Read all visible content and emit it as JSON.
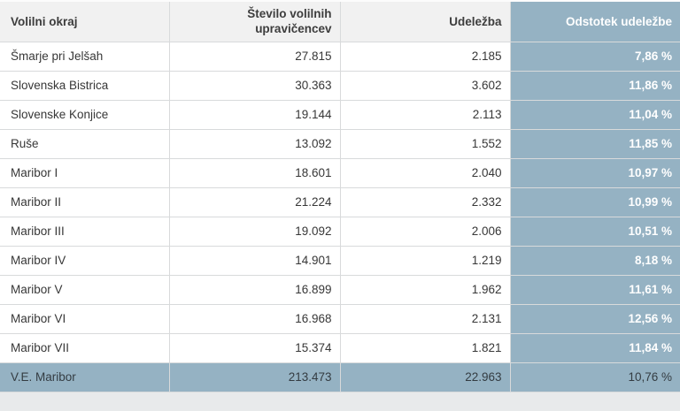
{
  "table": {
    "columns": [
      {
        "label": "Volilni okraj"
      },
      {
        "label": "Število volilnih upravičencev"
      },
      {
        "label": "Udeležba"
      },
      {
        "label": "Odstotek udeležbe"
      }
    ],
    "rows": [
      {
        "district": "Šmarje pri Jelšah",
        "eligible_voters": "27.815",
        "turnout": "2.185",
        "turnout_percent": "7,86 %"
      },
      {
        "district": "Slovenska Bistrica",
        "eligible_voters": "30.363",
        "turnout": "3.602",
        "turnout_percent": "11,86 %"
      },
      {
        "district": "Slovenske Konjice",
        "eligible_voters": "19.144",
        "turnout": "2.113",
        "turnout_percent": "11,04 %"
      },
      {
        "district": "Ruše",
        "eligible_voters": "13.092",
        "turnout": "1.552",
        "turnout_percent": "11,85 %"
      },
      {
        "district": "Maribor I",
        "eligible_voters": "18.601",
        "turnout": "2.040",
        "turnout_percent": "10,97 %"
      },
      {
        "district": "Maribor II",
        "eligible_voters": "21.224",
        "turnout": "2.332",
        "turnout_percent": "10,99 %"
      },
      {
        "district": "Maribor III",
        "eligible_voters": "19.092",
        "turnout": "2.006",
        "turnout_percent": "10,51 %"
      },
      {
        "district": "Maribor IV",
        "eligible_voters": "14.901",
        "turnout": "1.219",
        "turnout_percent": "8,18 %"
      },
      {
        "district": "Maribor V",
        "eligible_voters": "16.899",
        "turnout": "1.962",
        "turnout_percent": "11,61 %"
      },
      {
        "district": "Maribor VI",
        "eligible_voters": "16.968",
        "turnout": "2.131",
        "turnout_percent": "12,56 %"
      },
      {
        "district": "Maribor VII",
        "eligible_voters": "15.374",
        "turnout": "1.821",
        "turnout_percent": "11,84 %"
      }
    ],
    "total_row": {
      "district": "V.E. Maribor",
      "eligible_voters": "213.473",
      "turnout": "22.963",
      "turnout_percent": "10,76 %"
    }
  },
  "colors": {
    "accent_blue": "#95b2c3",
    "header_bg": "#f1f1f1",
    "row_bg": "#ffffff",
    "border": "#d8dadb",
    "text_dark": "#373737",
    "text_white": "#ffffff",
    "footer_text": "#343c42",
    "page_bg": "#e8eaeb"
  },
  "chart_data": {
    "type": "table",
    "title": "",
    "columns": [
      "Volilni okraj",
      "Število volilnih upravičencev",
      "Udeležba",
      "Odstotek udeležbe"
    ],
    "rows": [
      [
        "Šmarje pri Jelšah",
        27815,
        2185,
        7.86
      ],
      [
        "Slovenska Bistrica",
        30363,
        3602,
        11.86
      ],
      [
        "Slovenske Konjice",
        19144,
        2113,
        11.04
      ],
      [
        "Ruše",
        13092,
        1552,
        11.85
      ],
      [
        "Maribor I",
        18601,
        2040,
        10.97
      ],
      [
        "Maribor II",
        21224,
        2332,
        10.99
      ],
      [
        "Maribor III",
        19092,
        2006,
        10.51
      ],
      [
        "Maribor IV",
        14901,
        1219,
        8.18
      ],
      [
        "Maribor V",
        16899,
        1962,
        11.61
      ],
      [
        "Maribor VI",
        16968,
        2131,
        12.56
      ],
      [
        "Maribor VII",
        15374,
        1821,
        11.84
      ]
    ],
    "total_row": [
      "V.E. Maribor",
      213473,
      22963,
      10.76
    ],
    "percent_format": "comma-decimal with ' %' suffix",
    "number_format": "dot thousands separator"
  }
}
